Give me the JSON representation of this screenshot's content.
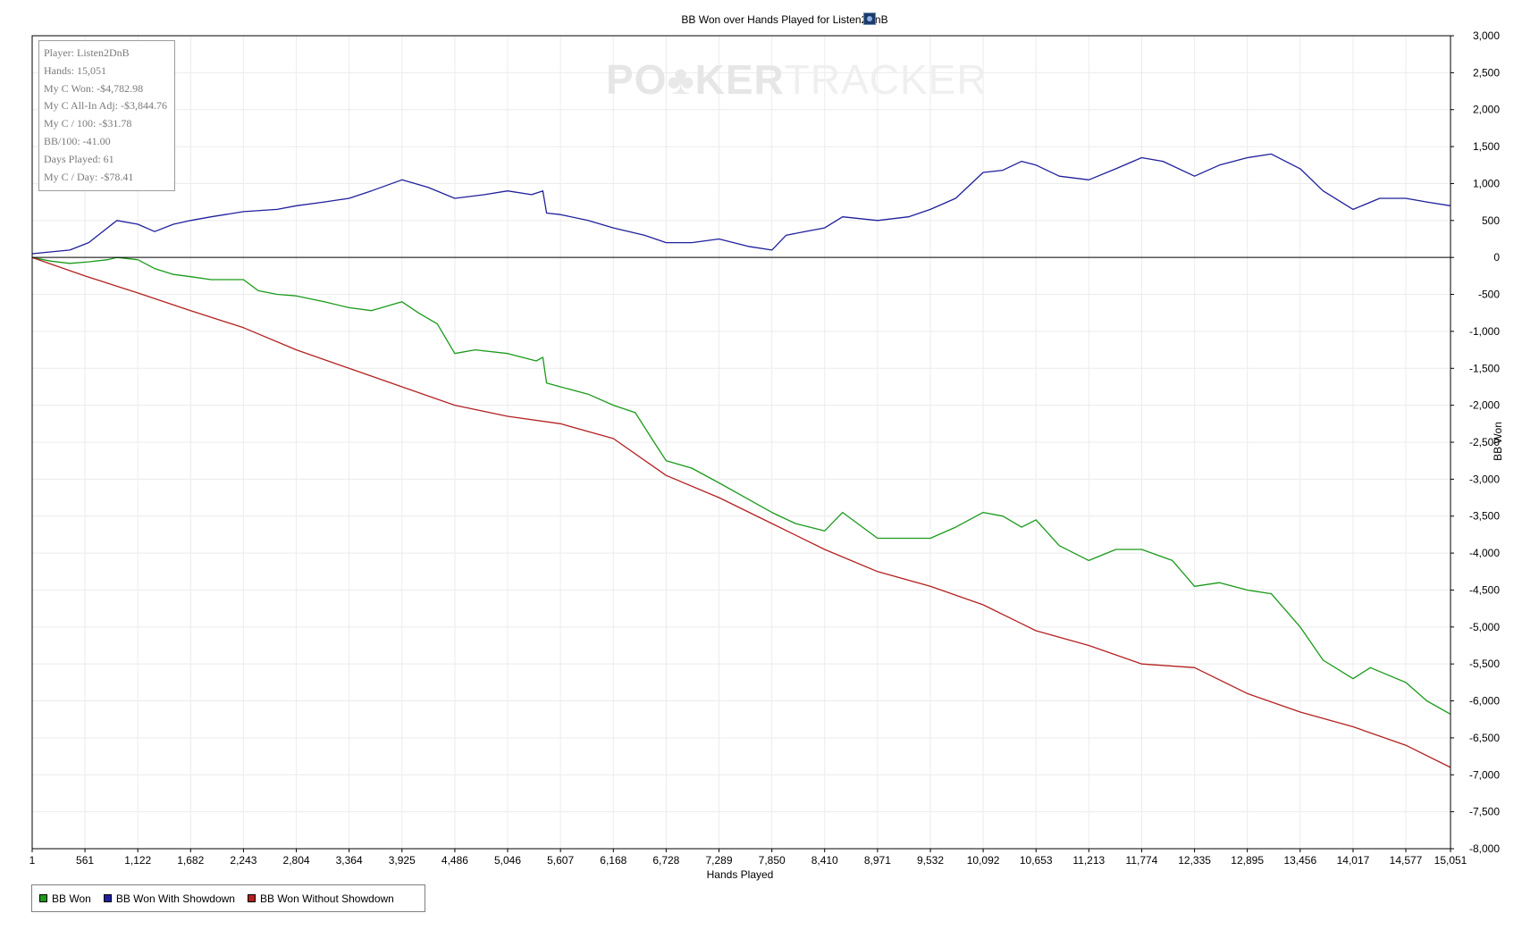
{
  "chart_data": {
    "type": "line",
    "title": "BB Won over Hands Played for Listen2DnB",
    "xlabel": "Hands Played",
    "ylabel": "BB Won",
    "xlim": [
      1,
      15051
    ],
    "ylim": [
      -8000,
      3000
    ],
    "x_ticks": [
      "1",
      "561",
      "1,122",
      "1,682",
      "2,243",
      "2,804",
      "3,364",
      "3,925",
      "4,486",
      "5,046",
      "5,607",
      "6,168",
      "6,728",
      "7,289",
      "7,850",
      "8,410",
      "8,971",
      "9,532",
      "10,092",
      "10,653",
      "11,213",
      "11,774",
      "12,335",
      "12,895",
      "13,456",
      "14,017",
      "14,577",
      "15,051"
    ],
    "y_ticks": [
      "3,000",
      "2,500",
      "2,000",
      "1,500",
      "1,000",
      "500",
      "0",
      "-500",
      "-1,000",
      "-1,500",
      "-2,000",
      "-2,500",
      "-3,000",
      "-3,500",
      "-4,000",
      "-4,500",
      "-5,000",
      "-5,500",
      "-6,000",
      "-6,500",
      "-7,000",
      "-7,500",
      "-8,000"
    ],
    "grid": true,
    "legend_position": "bottom-left",
    "series": [
      {
        "name": "BB Won",
        "color": "#1a9a1a",
        "points": [
          [
            1,
            0
          ],
          [
            200,
            -50
          ],
          [
            400,
            -80
          ],
          [
            600,
            -60
          ],
          [
            800,
            -30
          ],
          [
            900,
            0
          ],
          [
            1122,
            -30
          ],
          [
            1300,
            -150
          ],
          [
            1500,
            -230
          ],
          [
            1682,
            -260
          ],
          [
            1900,
            -300
          ],
          [
            2243,
            -300
          ],
          [
            2400,
            -450
          ],
          [
            2600,
            -500
          ],
          [
            2804,
            -520
          ],
          [
            3100,
            -600
          ],
          [
            3364,
            -680
          ],
          [
            3600,
            -720
          ],
          [
            3925,
            -600
          ],
          [
            4100,
            -750
          ],
          [
            4300,
            -900
          ],
          [
            4486,
            -1300
          ],
          [
            4700,
            -1250
          ],
          [
            5046,
            -1300
          ],
          [
            5350,
            -1400
          ],
          [
            5420,
            -1350
          ],
          [
            5460,
            -1700
          ],
          [
            5607,
            -1750
          ],
          [
            5900,
            -1850
          ],
          [
            6168,
            -2000
          ],
          [
            6400,
            -2100
          ],
          [
            6600,
            -2500
          ],
          [
            6728,
            -2750
          ],
          [
            7000,
            -2850
          ],
          [
            7289,
            -3050
          ],
          [
            7500,
            -3200
          ],
          [
            7850,
            -3450
          ],
          [
            8100,
            -3600
          ],
          [
            8410,
            -3700
          ],
          [
            8600,
            -3450
          ],
          [
            8971,
            -3800
          ],
          [
            9300,
            -3800
          ],
          [
            9532,
            -3800
          ],
          [
            9800,
            -3650
          ],
          [
            10092,
            -3450
          ],
          [
            10300,
            -3500
          ],
          [
            10500,
            -3650
          ],
          [
            10653,
            -3550
          ],
          [
            10900,
            -3900
          ],
          [
            11213,
            -4100
          ],
          [
            11500,
            -3950
          ],
          [
            11774,
            -3950
          ],
          [
            12100,
            -4100
          ],
          [
            12335,
            -4450
          ],
          [
            12600,
            -4400
          ],
          [
            12895,
            -4500
          ],
          [
            13150,
            -4550
          ],
          [
            13456,
            -5000
          ],
          [
            13700,
            -5450
          ],
          [
            14017,
            -5700
          ],
          [
            14200,
            -5550
          ],
          [
            14577,
            -5750
          ],
          [
            14800,
            -6000
          ],
          [
            15051,
            -6180
          ]
        ]
      },
      {
        "name": "BB Won With Showdown",
        "color": "#1f1f9c",
        "points": [
          [
            1,
            50
          ],
          [
            400,
            100
          ],
          [
            600,
            200
          ],
          [
            900,
            500
          ],
          [
            1122,
            450
          ],
          [
            1300,
            350
          ],
          [
            1500,
            450
          ],
          [
            1682,
            500
          ],
          [
            1900,
            550
          ],
          [
            2243,
            620
          ],
          [
            2600,
            650
          ],
          [
            2804,
            700
          ],
          [
            3100,
            750
          ],
          [
            3364,
            800
          ],
          [
            3600,
            900
          ],
          [
            3925,
            1050
          ],
          [
            4200,
            950
          ],
          [
            4486,
            800
          ],
          [
            4800,
            850
          ],
          [
            5046,
            900
          ],
          [
            5300,
            850
          ],
          [
            5420,
            900
          ],
          [
            5460,
            600
          ],
          [
            5607,
            580
          ],
          [
            5900,
            500
          ],
          [
            6168,
            400
          ],
          [
            6500,
            300
          ],
          [
            6728,
            200
          ],
          [
            7000,
            200
          ],
          [
            7289,
            250
          ],
          [
            7600,
            150
          ],
          [
            7850,
            100
          ],
          [
            8000,
            300
          ],
          [
            8200,
            350
          ],
          [
            8410,
            400
          ],
          [
            8600,
            550
          ],
          [
            8971,
            500
          ],
          [
            9300,
            550
          ],
          [
            9532,
            650
          ],
          [
            9800,
            800
          ],
          [
            10092,
            1150
          ],
          [
            10300,
            1180
          ],
          [
            10500,
            1300
          ],
          [
            10653,
            1250
          ],
          [
            10900,
            1100
          ],
          [
            11213,
            1050
          ],
          [
            11500,
            1200
          ],
          [
            11774,
            1350
          ],
          [
            12000,
            1300
          ],
          [
            12335,
            1100
          ],
          [
            12600,
            1250
          ],
          [
            12895,
            1350
          ],
          [
            13150,
            1400
          ],
          [
            13456,
            1200
          ],
          [
            13700,
            900
          ],
          [
            14017,
            650
          ],
          [
            14300,
            800
          ],
          [
            14577,
            800
          ],
          [
            14800,
            750
          ],
          [
            15051,
            700
          ]
        ]
      },
      {
        "name": "BB Won Without Showdown",
        "color": "#b32020",
        "points": [
          [
            1,
            0
          ],
          [
            561,
            -250
          ],
          [
            1122,
            -480
          ],
          [
            1682,
            -720
          ],
          [
            2243,
            -950
          ],
          [
            2804,
            -1250
          ],
          [
            3364,
            -1500
          ],
          [
            3925,
            -1750
          ],
          [
            4486,
            -2000
          ],
          [
            5046,
            -2150
          ],
          [
            5607,
            -2250
          ],
          [
            6168,
            -2450
          ],
          [
            6728,
            -2950
          ],
          [
            7289,
            -3250
          ],
          [
            7850,
            -3600
          ],
          [
            8410,
            -3950
          ],
          [
            8971,
            -4250
          ],
          [
            9532,
            -4450
          ],
          [
            10092,
            -4700
          ],
          [
            10653,
            -5050
          ],
          [
            11213,
            -5250
          ],
          [
            11774,
            -5500
          ],
          [
            12335,
            -5550
          ],
          [
            12895,
            -5900
          ],
          [
            13456,
            -6150
          ],
          [
            14017,
            -6350
          ],
          [
            14577,
            -6600
          ],
          [
            15051,
            -6900
          ]
        ]
      }
    ]
  },
  "stats": {
    "player": "Player: Listen2DnB",
    "hands": "Hands: 15,051",
    "my_c_won": "My C Won: -$4,782.98",
    "all_in_adj": "My C All-In Adj: -$3,844.76",
    "per_100": "My C / 100: -$31.78",
    "bb_100": "BB/100: -41.00",
    "days_played": "Days Played: 61",
    "per_day": "My C / Day: -$78.41"
  },
  "watermark": {
    "left": "PO",
    "chip": "♣",
    "mid": "KER",
    "right": "TRACKER"
  }
}
